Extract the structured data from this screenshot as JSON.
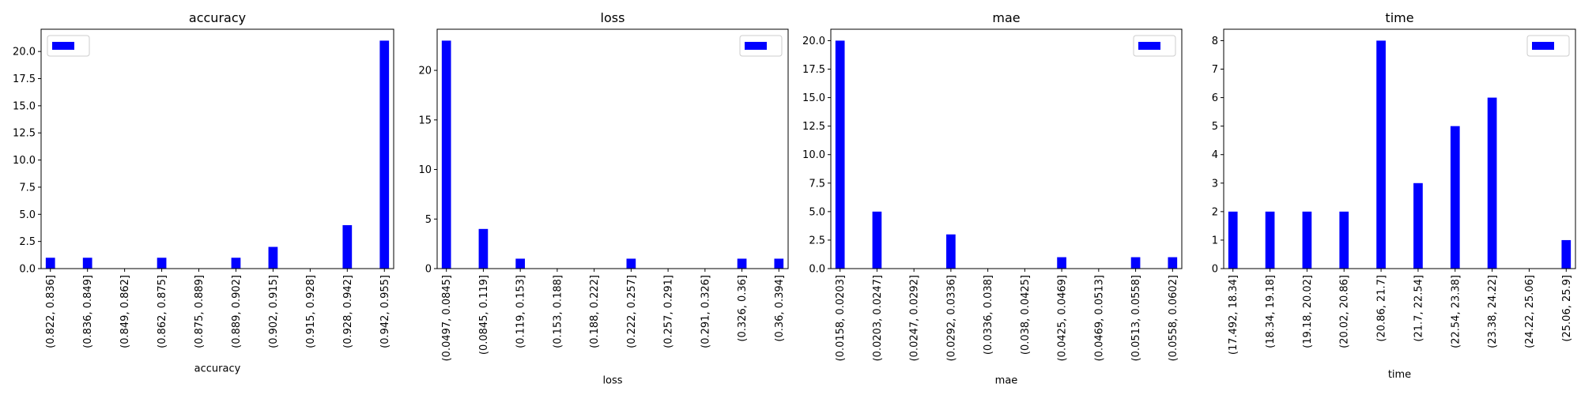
{
  "colors": {
    "bar": "#0000ff",
    "axis": "#000000",
    "background": "#ffffff"
  },
  "chart_data": [
    {
      "type": "bar",
      "title": "accuracy",
      "xlabel": "accuracy",
      "ylabel": "",
      "categories": [
        "(0.822, 0.836]",
        "(0.836, 0.849]",
        "(0.849, 0.862]",
        "(0.862, 0.875]",
        "(0.875, 0.889]",
        "(0.889, 0.902]",
        "(0.902, 0.915]",
        "(0.915, 0.928]",
        "(0.928, 0.942]",
        "(0.942, 0.955]"
      ],
      "values": [
        1,
        1,
        0,
        1,
        0,
        1,
        2,
        0,
        4,
        21
      ],
      "ylim": [
        0,
        22.05
      ],
      "yticks": [
        "0.0",
        "2.5",
        "5.0",
        "7.5",
        "10.0",
        "12.5",
        "15.0",
        "17.5",
        "20.0"
      ],
      "legend": "top-left",
      "grid": false
    },
    {
      "type": "bar",
      "title": "loss",
      "xlabel": "loss",
      "ylabel": "",
      "categories": [
        "(0.0497, 0.0845]",
        "(0.0845, 0.119]",
        "(0.119, 0.153]",
        "(0.153, 0.188]",
        "(0.188, 0.222]",
        "(0.222, 0.257]",
        "(0.257, 0.291]",
        "(0.291, 0.326]",
        "(0.326, 0.36]",
        "(0.36, 0.394]"
      ],
      "values": [
        23,
        4,
        1,
        0,
        0,
        1,
        0,
        0,
        1,
        1
      ],
      "ylim": [
        0,
        24.15
      ],
      "yticks": [
        "0",
        "5",
        "10",
        "15",
        "20"
      ],
      "legend": "top-right",
      "grid": false
    },
    {
      "type": "bar",
      "title": "mae",
      "xlabel": "mae",
      "ylabel": "",
      "categories": [
        "(0.0158, 0.0203]",
        "(0.0203, 0.0247]",
        "(0.0247, 0.0292]",
        "(0.0292, 0.0336]",
        "(0.0336, 0.038]",
        "(0.038, 0.0425]",
        "(0.0425, 0.0469]",
        "(0.0469, 0.0513]",
        "(0.0513, 0.0558]",
        "(0.0558, 0.0602]"
      ],
      "values": [
        20,
        5,
        0,
        3,
        0,
        0,
        1,
        0,
        1,
        1
      ],
      "ylim": [
        0,
        21
      ],
      "yticks": [
        "0.0",
        "2.5",
        "5.0",
        "7.5",
        "10.0",
        "12.5",
        "15.0",
        "17.5",
        "20.0"
      ],
      "legend": "top-right",
      "grid": false
    },
    {
      "type": "bar",
      "title": "time",
      "xlabel": "time",
      "ylabel": "",
      "categories": [
        "(17.492, 18.34]",
        "(18.34, 19.18]",
        "(19.18, 20.02]",
        "(20.02, 20.86]",
        "(20.86, 21.7]",
        "(21.7, 22.54]",
        "(22.54, 23.38]",
        "(23.38, 24.22]",
        "(24.22, 25.06]",
        "(25.06, 25.9]"
      ],
      "values": [
        2,
        2,
        2,
        2,
        8,
        3,
        5,
        6,
        0,
        1
      ],
      "ylim": [
        0,
        8.4
      ],
      "yticks": [
        "0",
        "1",
        "2",
        "3",
        "4",
        "5",
        "6",
        "7",
        "8"
      ],
      "legend": "top-right",
      "grid": false
    }
  ]
}
